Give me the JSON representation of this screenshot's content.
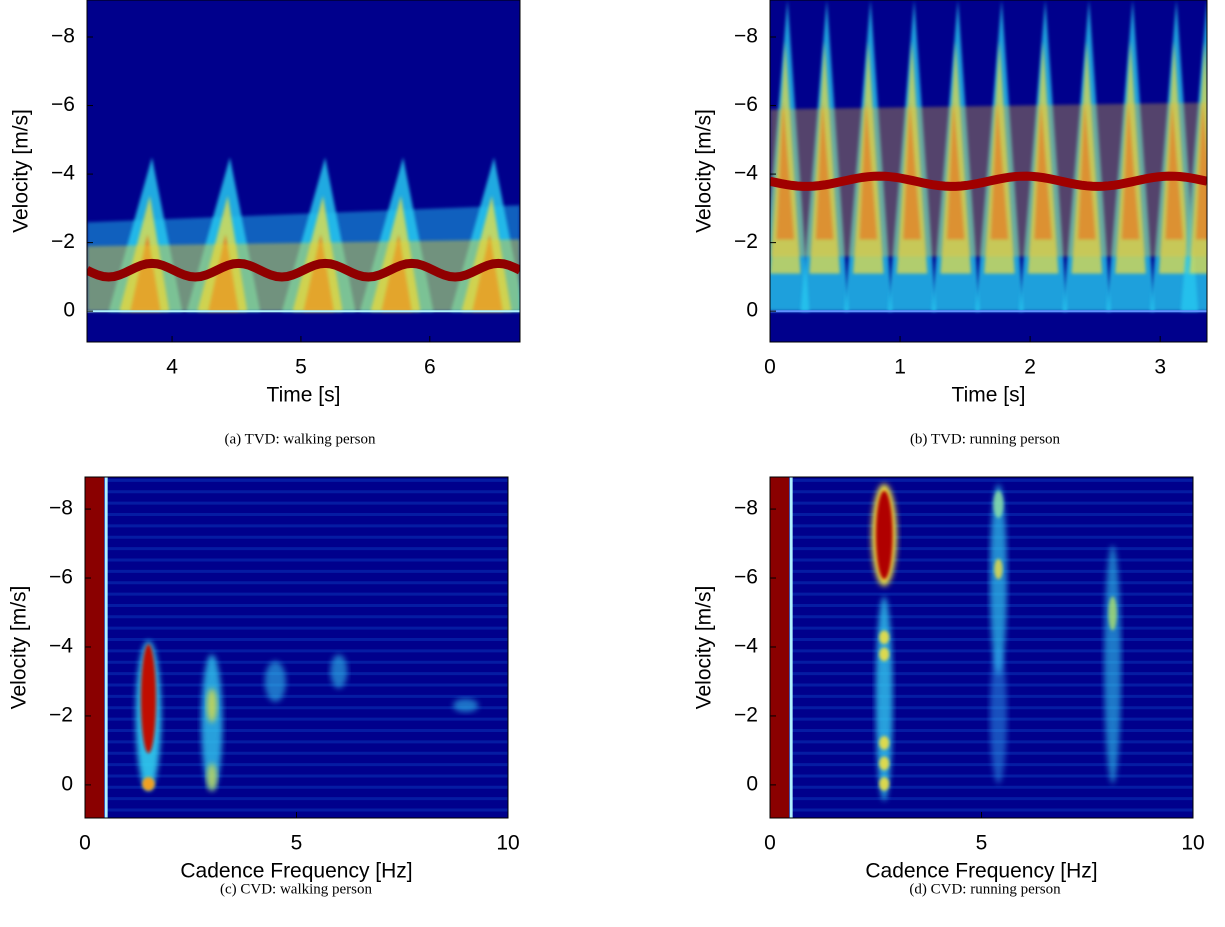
{
  "chart_data": [
    {
      "type": "heatmap",
      "caption": "(a) TVD: walking person",
      "xlabel": "Time [s]",
      "ylabel": "Velocity [m/s]",
      "xlim": [
        3.34,
        6.7
      ],
      "ylim": [
        0.9,
        -9.08
      ],
      "xticks": [
        4,
        5,
        6
      ],
      "yticks": [
        {
          "value": -8,
          "label": "−8"
        },
        {
          "value": -6,
          "label": "−6"
        },
        {
          "value": -4,
          "label": "−4"
        },
        {
          "value": -2,
          "label": "−2"
        },
        0
      ]
    },
    {
      "type": "heatmap",
      "caption": "(b) TVD: running person",
      "xlabel": "Time [s]",
      "ylabel": "Velocity [m/s]",
      "xlim": [
        0,
        3.36
      ],
      "ylim": [
        0.9,
        -9.08
      ],
      "xticks": [
        0,
        1,
        2,
        3
      ],
      "yticks": [
        {
          "value": -8,
          "label": "−8"
        },
        {
          "value": -6,
          "label": "−6"
        },
        {
          "value": -4,
          "label": "−4"
        },
        {
          "value": -2,
          "label": "−2"
        },
        0
      ]
    },
    {
      "type": "heatmap",
      "caption": "(c) CVD: walking person",
      "xlabel": "Cadence Frequency [Hz]",
      "ylabel": "Velocity [m/s]",
      "xlim": [
        0,
        10
      ],
      "ylim": [
        0.96,
        -8.93
      ],
      "xticks": [
        0,
        5,
        10
      ],
      "yticks": [
        {
          "value": -8,
          "label": "−8"
        },
        {
          "value": -6,
          "label": "−6"
        },
        {
          "value": -4,
          "label": "−4"
        },
        {
          "value": -2,
          "label": "−2"
        },
        0
      ]
    },
    {
      "type": "heatmap",
      "caption": "(d) CVD: running person",
      "xlabel": "Cadence Frequency [Hz]",
      "ylabel": "Velocity [m/s]",
      "xlim": [
        0,
        10
      ],
      "ylim": [
        0.96,
        -8.93
      ],
      "xticks": [
        0,
        5,
        10
      ],
      "yticks": [
        {
          "value": -8,
          "label": "−8"
        },
        {
          "value": -6,
          "label": "−6"
        },
        {
          "value": -4,
          "label": "−4"
        },
        {
          "value": -2,
          "label": "−2"
        },
        0
      ]
    }
  ]
}
